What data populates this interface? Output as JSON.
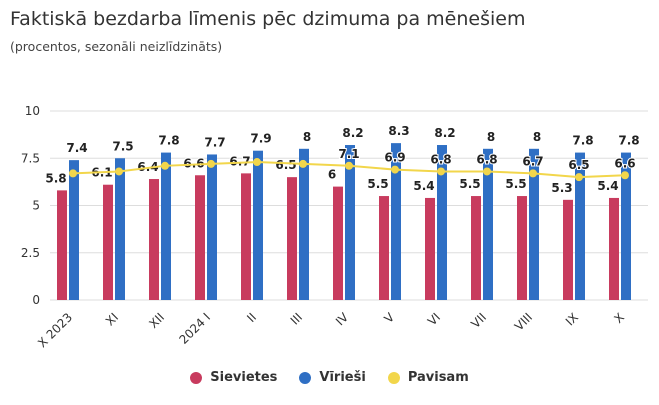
{
  "title": "Faktiskā bezdarba līmenis pēc dzimuma pa mēnešiem",
  "subtitle": "(procentos, sezonāli neizlīdzināts)",
  "chart_data": {
    "type": "bar",
    "categories": [
      "X 2023",
      "XI",
      "XII",
      "2024 I",
      "II",
      "III",
      "IV",
      "V",
      "VI",
      "VII",
      "VIII",
      "IX",
      "X"
    ],
    "yticks": [
      "0",
      "2.5",
      "5",
      "7.5",
      "10"
    ],
    "ylim": [
      0,
      10
    ],
    "grid": true,
    "legend_placement": "bottom",
    "series": [
      {
        "name": "Sievietes",
        "type": "bar",
        "color": "#c83b5e",
        "values": [
          5.8,
          6.1,
          6.4,
          6.6,
          6.7,
          6.5,
          6,
          5.5,
          5.4,
          5.5,
          5.5,
          5.3,
          5.4
        ],
        "labels_shown": true
      },
      {
        "name": "Vīrieši",
        "type": "bar",
        "color": "#2f6fc4",
        "values": [
          7.4,
          7.5,
          7.8,
          7.7,
          7.9,
          8,
          8.2,
          8.3,
          8.2,
          8,
          8,
          7.8,
          7.8
        ],
        "labels_shown": true
      },
      {
        "name": "Pavisam",
        "type": "line",
        "color": "#f2d64b",
        "values": [
          6.7,
          6.8,
          7.1,
          7.2,
          7.3,
          7.2,
          7.1,
          6.9,
          6.8,
          6.8,
          6.7,
          6.5,
          6.6
        ],
        "labels_shown_from_index": 6
      }
    ]
  }
}
